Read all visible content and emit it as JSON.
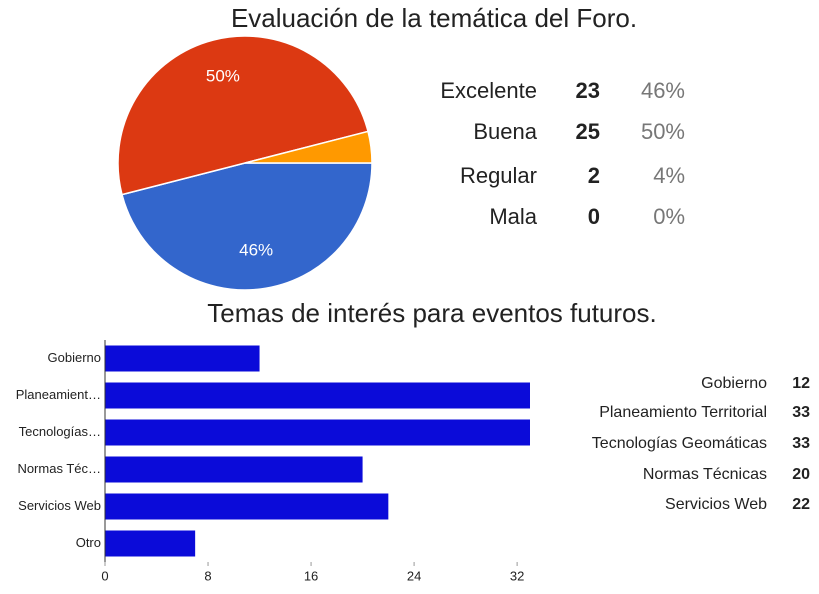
{
  "chart_data": [
    {
      "type": "pie",
      "title": "Evaluación de la temática del Foro.",
      "categories": [
        "Excelente",
        "Buena",
        "Regular",
        "Mala"
      ],
      "values": [
        46,
        50,
        4,
        0
      ],
      "value_labels": [
        "46%",
        "50%",
        "4%",
        "0%"
      ],
      "counts": [
        23,
        25,
        2,
        0
      ],
      "colors": [
        "#3366cc",
        "#dc3912",
        "#ff9900",
        "#109618"
      ]
    },
    {
      "type": "bar",
      "title": "Temas de interés para eventos futuros.",
      "categories": [
        "Gobierno",
        "Planeamiento Territorial",
        "Tecnologías Geomáticas",
        "Normas Técnicas",
        "Servicios Web",
        "Otro"
      ],
      "category_labels": [
        "Gobierno",
        "Planeamient…",
        "Tecnologías…",
        "Normas Téc…",
        "Servicios Web",
        "Otro"
      ],
      "values": [
        12,
        33,
        33,
        20,
        22,
        7
      ],
      "color": "#0b0bd9",
      "xlim": [
        0,
        33
      ],
      "xticks": [
        0,
        8,
        16,
        24,
        32
      ]
    }
  ]
}
